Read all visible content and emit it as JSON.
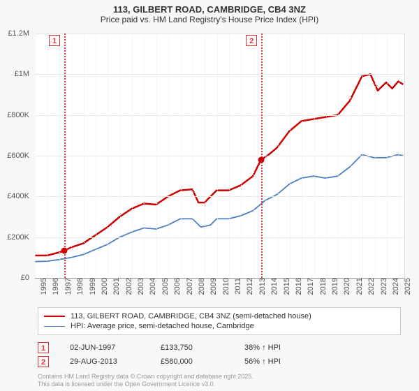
{
  "title": {
    "line1": "113, GILBERT ROAD, CAMBRIDGE, CB4 3NZ",
    "line2": "Price paid vs. HM Land Registry's House Price Index (HPI)"
  },
  "chart": {
    "type": "line",
    "background_color": "#f8f8f8",
    "plot_bg_color": "#ffffff",
    "grid_color": "#e8e8e8",
    "axis_color": "#555555",
    "x_years": [
      1995,
      1996,
      1997,
      1998,
      1999,
      2000,
      2001,
      2002,
      2003,
      2004,
      2005,
      2006,
      2007,
      2008,
      2009,
      2010,
      2011,
      2012,
      2013,
      2014,
      2015,
      2016,
      2017,
      2018,
      2019,
      2020,
      2021,
      2022,
      2023,
      2024,
      2025
    ],
    "y_ticks": [
      0,
      200000,
      400000,
      600000,
      800000,
      1000000,
      1200000
    ],
    "y_tick_labels": [
      "£0",
      "£200K",
      "£400K",
      "£600K",
      "£800K",
      "£1M",
      "£1.2M"
    ],
    "ylim": [
      0,
      1200000
    ],
    "xlim": [
      1995,
      2025.5
    ],
    "series": [
      {
        "id": "price_paid",
        "label": "113, GILBERT ROAD, CAMBRIDGE, CB4 3NZ (semi-detached house)",
        "color": "#cc0000",
        "line_width": 2.5,
        "data": [
          [
            1995.0,
            110000
          ],
          [
            1996.0,
            110000
          ],
          [
            1997.0,
            125000
          ],
          [
            1997.42,
            133750
          ],
          [
            1998.0,
            150000
          ],
          [
            1999.0,
            170000
          ],
          [
            2000.0,
            210000
          ],
          [
            2001.0,
            250000
          ],
          [
            2002.0,
            300000
          ],
          [
            2003.0,
            340000
          ],
          [
            2004.0,
            365000
          ],
          [
            2005.0,
            360000
          ],
          [
            2006.0,
            400000
          ],
          [
            2007.0,
            430000
          ],
          [
            2008.0,
            435000
          ],
          [
            2008.5,
            370000
          ],
          [
            2009.0,
            370000
          ],
          [
            2010.0,
            430000
          ],
          [
            2011.0,
            430000
          ],
          [
            2012.0,
            455000
          ],
          [
            2013.0,
            500000
          ],
          [
            2013.66,
            580000
          ],
          [
            2014.3,
            605000
          ],
          [
            2015.0,
            640000
          ],
          [
            2016.0,
            720000
          ],
          [
            2017.0,
            770000
          ],
          [
            2018.0,
            780000
          ],
          [
            2019.0,
            790000
          ],
          [
            2020.0,
            800000
          ],
          [
            2021.0,
            870000
          ],
          [
            2022.0,
            990000
          ],
          [
            2022.7,
            1000000
          ],
          [
            2023.3,
            920000
          ],
          [
            2024.0,
            960000
          ],
          [
            2024.5,
            930000
          ],
          [
            2025.0,
            965000
          ],
          [
            2025.4,
            950000
          ]
        ]
      },
      {
        "id": "hpi",
        "label": "HPI: Average price, semi-detached house, Cambridge",
        "color": "#4a7fc1",
        "line_width": 1.8,
        "data": [
          [
            1995.0,
            80000
          ],
          [
            1996.0,
            82000
          ],
          [
            1997.0,
            90000
          ],
          [
            1998.0,
            100000
          ],
          [
            1999.0,
            115000
          ],
          [
            2000.0,
            140000
          ],
          [
            2001.0,
            165000
          ],
          [
            2002.0,
            200000
          ],
          [
            2003.0,
            225000
          ],
          [
            2004.0,
            245000
          ],
          [
            2005.0,
            240000
          ],
          [
            2006.0,
            260000
          ],
          [
            2007.0,
            290000
          ],
          [
            2008.0,
            290000
          ],
          [
            2008.7,
            250000
          ],
          [
            2009.5,
            260000
          ],
          [
            2010.0,
            290000
          ],
          [
            2011.0,
            290000
          ],
          [
            2012.0,
            305000
          ],
          [
            2013.0,
            330000
          ],
          [
            2014.0,
            380000
          ],
          [
            2015.0,
            410000
          ],
          [
            2016.0,
            460000
          ],
          [
            2017.0,
            490000
          ],
          [
            2018.0,
            500000
          ],
          [
            2019.0,
            490000
          ],
          [
            2020.0,
            500000
          ],
          [
            2021.0,
            545000
          ],
          [
            2022.0,
            605000
          ],
          [
            2023.0,
            590000
          ],
          [
            2024.0,
            590000
          ],
          [
            2025.0,
            605000
          ],
          [
            2025.4,
            600000
          ]
        ]
      }
    ],
    "sale_markers": [
      {
        "n": "1",
        "x": 1997.42,
        "y": 133750
      },
      {
        "n": "2",
        "x": 2013.66,
        "y": 580000
      }
    ]
  },
  "sales": [
    {
      "n": "1",
      "date": "02-JUN-1997",
      "price": "£133,750",
      "delta": "38% ↑ HPI"
    },
    {
      "n": "2",
      "date": "29-AUG-2013",
      "price": "£580,000",
      "delta": "56% ↑ HPI"
    }
  ],
  "footer": {
    "line1": "Contains HM Land Registry data © Crown copyright and database right 2025.",
    "line2": "This data is licensed under the Open Government Licence v3.0."
  }
}
